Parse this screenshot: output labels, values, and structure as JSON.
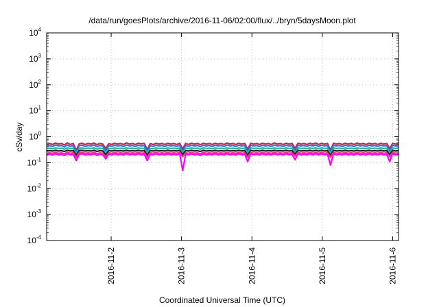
{
  "chart_data": {
    "type": "line",
    "title": "/data/run/goesPlots/archive/2016-11-06/02:00/flux/../bryn/5daysMoon.plot",
    "xlabel": "Coordinated Universal Time (UTC)",
    "ylabel": "cSv/day",
    "y_scale": "log",
    "ylim": [
      0.0001,
      10000
    ],
    "xlim": [
      "2016-11-01T02:00",
      "2016-11-06T02:00"
    ],
    "y_ticks": [
      {
        "base": "10",
        "exp": "4",
        "value": 10000
      },
      {
        "base": "10",
        "exp": "3",
        "value": 1000
      },
      {
        "base": "10",
        "exp": "2",
        "value": 100
      },
      {
        "base": "10",
        "exp": "1",
        "value": 10
      },
      {
        "base": "10",
        "exp": "0",
        "value": 1
      },
      {
        "base": "10",
        "exp": "-1",
        "value": 0.1
      },
      {
        "base": "10",
        "exp": "-2",
        "value": 0.01
      },
      {
        "base": "10",
        "exp": "-3",
        "value": 0.001
      },
      {
        "base": "10",
        "exp": "-4",
        "value": 0.0001
      }
    ],
    "x_ticks": [
      {
        "label": "2016-11-2",
        "value": "2016-11-02T00:00"
      },
      {
        "label": "2016-11-3",
        "value": "2016-11-03T00:00"
      },
      {
        "label": "2016-11-4",
        "value": "2016-11-04T00:00"
      },
      {
        "label": "2016-11-5",
        "value": "2016-11-05T00:00"
      },
      {
        "label": "2016-11-6",
        "value": "2016-11-06T00:00"
      }
    ],
    "grid": true,
    "series": [
      {
        "color": "#cc2244",
        "values": [
          0.5,
          0.55,
          0.5,
          0.57,
          0.52,
          0.55,
          0.48,
          0.58,
          0.5,
          0.55,
          0.3,
          0.53,
          0.56,
          0.5,
          0.55,
          0.52,
          0.57,
          0.49,
          0.55,
          0.52,
          0.35,
          0.54,
          0.5,
          0.56,
          0.52,
          0.55,
          0.5,
          0.58,
          0.52,
          0.55,
          0.5,
          0.56,
          0.53,
          0.55,
          0.32,
          0.54,
          0.5,
          0.56,
          0.52,
          0.55,
          0.5,
          0.56,
          0.52,
          0.55,
          0.5,
          0.56,
          0.34,
          0.55,
          0.5,
          0.56,
          0.52,
          0.55,
          0.49,
          0.56,
          0.52,
          0.55,
          0.5,
          0.56,
          0.52,
          0.55,
          0.5,
          0.57,
          0.52,
          0.55,
          0.5,
          0.56,
          0.52,
          0.55,
          0.33,
          0.56,
          0.52,
          0.55,
          0.5,
          0.56,
          0.52,
          0.55,
          0.5,
          0.58,
          0.52,
          0.55,
          0.5,
          0.56,
          0.52,
          0.55,
          0.36,
          0.56,
          0.52,
          0.55,
          0.5,
          0.56,
          0.52,
          0.57,
          0.5,
          0.56,
          0.52,
          0.55,
          0.3,
          0.56,
          0.52,
          0.55,
          0.5,
          0.56,
          0.52,
          0.55,
          0.5,
          0.57,
          0.52,
          0.55,
          0.5,
          0.56,
          0.52,
          0.55,
          0.5,
          0.56,
          0.52,
          0.55,
          0.35,
          0.56,
          0.52,
          0.55
        ]
      },
      {
        "color": "#1f7ae8",
        "values": [
          0.42,
          0.46,
          0.42,
          0.48,
          0.44,
          0.46,
          0.4,
          0.48,
          0.42,
          0.46,
          0.24,
          0.45,
          0.47,
          0.42,
          0.46,
          0.44,
          0.48,
          0.41,
          0.46,
          0.44,
          0.28,
          0.45,
          0.42,
          0.47,
          0.44,
          0.46,
          0.42,
          0.48,
          0.44,
          0.46,
          0.42,
          0.47,
          0.44,
          0.46,
          0.26,
          0.45,
          0.42,
          0.47,
          0.44,
          0.46,
          0.42,
          0.47,
          0.44,
          0.46,
          0.42,
          0.47,
          0.27,
          0.46,
          0.42,
          0.47,
          0.44,
          0.46,
          0.41,
          0.47,
          0.44,
          0.46,
          0.42,
          0.47,
          0.44,
          0.46,
          0.42,
          0.48,
          0.44,
          0.46,
          0.42,
          0.47,
          0.44,
          0.46,
          0.26,
          0.47,
          0.44,
          0.46,
          0.42,
          0.47,
          0.44,
          0.46,
          0.42,
          0.48,
          0.44,
          0.46,
          0.42,
          0.47,
          0.44,
          0.46,
          0.29,
          0.47,
          0.44,
          0.46,
          0.42,
          0.47,
          0.44,
          0.48,
          0.42,
          0.47,
          0.44,
          0.46,
          0.24,
          0.47,
          0.44,
          0.46,
          0.42,
          0.47,
          0.44,
          0.46,
          0.42,
          0.48,
          0.44,
          0.46,
          0.42,
          0.47,
          0.44,
          0.46,
          0.42,
          0.47,
          0.44,
          0.46,
          0.28,
          0.47,
          0.44,
          0.46
        ]
      },
      {
        "color": "#2ab09a",
        "values": [
          0.34,
          0.36,
          0.34,
          0.37,
          0.35,
          0.36,
          0.33,
          0.37,
          0.34,
          0.36,
          0.22,
          0.35,
          0.37,
          0.34,
          0.36,
          0.35,
          0.37,
          0.33,
          0.36,
          0.35,
          0.24,
          0.35,
          0.34,
          0.37,
          0.35,
          0.36,
          0.34,
          0.37,
          0.35,
          0.36,
          0.34,
          0.37,
          0.35,
          0.36,
          0.23,
          0.35,
          0.34,
          0.37,
          0.35,
          0.36,
          0.34,
          0.37,
          0.35,
          0.36,
          0.34,
          0.37,
          0.24,
          0.36,
          0.34,
          0.37,
          0.35,
          0.36,
          0.33,
          0.37,
          0.35,
          0.36,
          0.34,
          0.37,
          0.35,
          0.36,
          0.34,
          0.37,
          0.35,
          0.36,
          0.34,
          0.37,
          0.35,
          0.36,
          0.23,
          0.37,
          0.35,
          0.36,
          0.34,
          0.37,
          0.35,
          0.36,
          0.34,
          0.37,
          0.35,
          0.36,
          0.34,
          0.37,
          0.35,
          0.36,
          0.25,
          0.37,
          0.35,
          0.36,
          0.34,
          0.37,
          0.35,
          0.37,
          0.34,
          0.37,
          0.35,
          0.36,
          0.22,
          0.37,
          0.35,
          0.36,
          0.34,
          0.37,
          0.35,
          0.36,
          0.34,
          0.37,
          0.35,
          0.36,
          0.34,
          0.37,
          0.35,
          0.36,
          0.34,
          0.37,
          0.35,
          0.36,
          0.24,
          0.37,
          0.35,
          0.36
        ]
      },
      {
        "color": "#222222",
        "values": [
          0.28,
          0.29,
          0.28,
          0.3,
          0.28,
          0.29,
          0.27,
          0.3,
          0.28,
          0.29,
          0.19,
          0.29,
          0.3,
          0.28,
          0.29,
          0.28,
          0.3,
          0.27,
          0.29,
          0.28,
          0.2,
          0.29,
          0.28,
          0.3,
          0.28,
          0.29,
          0.28,
          0.3,
          0.28,
          0.29,
          0.28,
          0.3,
          0.28,
          0.29,
          0.19,
          0.29,
          0.28,
          0.3,
          0.28,
          0.29,
          0.28,
          0.3,
          0.28,
          0.29,
          0.28,
          0.3,
          0.2,
          0.29,
          0.28,
          0.3,
          0.28,
          0.29,
          0.27,
          0.3,
          0.28,
          0.29,
          0.28,
          0.3,
          0.28,
          0.29,
          0.28,
          0.3,
          0.28,
          0.29,
          0.28,
          0.3,
          0.28,
          0.29,
          0.19,
          0.3,
          0.28,
          0.29,
          0.28,
          0.3,
          0.28,
          0.29,
          0.28,
          0.3,
          0.28,
          0.29,
          0.28,
          0.3,
          0.28,
          0.29,
          0.21,
          0.3,
          0.28,
          0.29,
          0.28,
          0.3,
          0.28,
          0.3,
          0.28,
          0.3,
          0.28,
          0.29,
          0.19,
          0.3,
          0.28,
          0.29,
          0.28,
          0.3,
          0.28,
          0.29,
          0.28,
          0.3,
          0.28,
          0.29,
          0.28,
          0.3,
          0.28,
          0.29,
          0.28,
          0.3,
          0.28,
          0.29,
          0.2,
          0.3,
          0.28,
          0.29
        ]
      },
      {
        "color": "#e83a8a",
        "values": [
          0.23,
          0.24,
          0.23,
          0.25,
          0.23,
          0.24,
          0.22,
          0.25,
          0.23,
          0.24,
          0.16,
          0.24,
          0.25,
          0.23,
          0.24,
          0.23,
          0.25,
          0.22,
          0.24,
          0.23,
          0.17,
          0.24,
          0.23,
          0.25,
          0.23,
          0.24,
          0.23,
          0.25,
          0.23,
          0.24,
          0.23,
          0.25,
          0.23,
          0.24,
          0.16,
          0.24,
          0.23,
          0.25,
          0.23,
          0.24,
          0.23,
          0.25,
          0.23,
          0.24,
          0.23,
          0.25,
          0.17,
          0.24,
          0.23,
          0.25,
          0.23,
          0.24,
          0.22,
          0.25,
          0.23,
          0.24,
          0.23,
          0.25,
          0.23,
          0.24,
          0.23,
          0.25,
          0.23,
          0.24,
          0.23,
          0.25,
          0.23,
          0.24,
          0.16,
          0.25,
          0.23,
          0.24,
          0.23,
          0.25,
          0.23,
          0.24,
          0.23,
          0.25,
          0.23,
          0.24,
          0.23,
          0.25,
          0.23,
          0.24,
          0.18,
          0.25,
          0.23,
          0.24,
          0.23,
          0.25,
          0.23,
          0.25,
          0.23,
          0.25,
          0.23,
          0.24,
          0.16,
          0.25,
          0.23,
          0.24,
          0.23,
          0.25,
          0.23,
          0.24,
          0.23,
          0.25,
          0.23,
          0.24,
          0.23,
          0.25,
          0.23,
          0.24,
          0.23,
          0.25,
          0.23,
          0.24,
          0.17,
          0.25,
          0.23,
          0.24
        ]
      },
      {
        "color": "#ff00ff",
        "values": [
          0.2,
          0.21,
          0.2,
          0.22,
          0.2,
          0.21,
          0.19,
          0.22,
          0.2,
          0.21,
          0.12,
          0.21,
          0.22,
          0.2,
          0.21,
          0.2,
          0.22,
          0.19,
          0.21,
          0.2,
          0.14,
          0.21,
          0.2,
          0.22,
          0.2,
          0.21,
          0.2,
          0.22,
          0.2,
          0.21,
          0.2,
          0.22,
          0.2,
          0.21,
          0.12,
          0.21,
          0.2,
          0.22,
          0.2,
          0.21,
          0.2,
          0.22,
          0.2,
          0.21,
          0.2,
          0.22,
          0.05,
          0.21,
          0.2,
          0.22,
          0.2,
          0.21,
          0.19,
          0.22,
          0.2,
          0.21,
          0.2,
          0.22,
          0.2,
          0.21,
          0.2,
          0.22,
          0.2,
          0.21,
          0.2,
          0.22,
          0.2,
          0.21,
          0.11,
          0.22,
          0.2,
          0.21,
          0.2,
          0.22,
          0.2,
          0.21,
          0.2,
          0.22,
          0.2,
          0.21,
          0.2,
          0.22,
          0.2,
          0.21,
          0.13,
          0.22,
          0.2,
          0.21,
          0.2,
          0.22,
          0.2,
          0.22,
          0.2,
          0.22,
          0.2,
          0.21,
          0.08,
          0.22,
          0.2,
          0.21,
          0.2,
          0.22,
          0.2,
          0.21,
          0.2,
          0.22,
          0.2,
          0.21,
          0.2,
          0.22,
          0.2,
          0.21,
          0.2,
          0.22,
          0.2,
          0.21,
          0.11,
          0.22,
          0.2,
          0.21
        ]
      }
    ]
  }
}
